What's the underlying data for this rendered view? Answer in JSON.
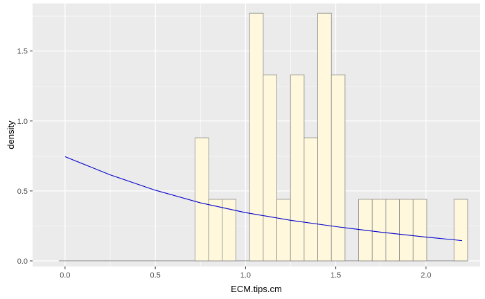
{
  "chart_data": {
    "type": "histogram",
    "title": "",
    "xlabel": "ECM.tips.cm",
    "ylabel": "density",
    "xlim": [
      -0.18,
      2.3
    ],
    "ylim": [
      -0.04,
      1.84
    ],
    "xticks": [
      0.0,
      0.5,
      1.0,
      1.5,
      2.0
    ],
    "xtick_labels": [
      "0.0",
      "0.5",
      "1.0",
      "1.5",
      "2.0"
    ],
    "yticks": [
      0.0,
      0.5,
      1.0,
      1.5
    ],
    "ytick_labels": [
      "0.0",
      "0.5",
      "1.0",
      "1.5"
    ],
    "grid": true,
    "background": "#ebebeb",
    "grid_color": "#ffffff",
    "bar_fill": "#fff8dc",
    "bar_stroke": "#8c8c8c",
    "baseline_color": "#8c8c8c",
    "curve_color": "#0000cc",
    "bin_width": 0.0755,
    "bins": [
      {
        "x0": -0.0344,
        "density": 0.0
      },
      {
        "x0": 0.0411,
        "density": 0.0
      },
      {
        "x0": 0.1166,
        "density": 0.0
      },
      {
        "x0": 0.1921,
        "density": 0.0
      },
      {
        "x0": 0.2676,
        "density": 0.0
      },
      {
        "x0": 0.3431,
        "density": 0.0
      },
      {
        "x0": 0.4186,
        "density": 0.0
      },
      {
        "x0": 0.4941,
        "density": 0.0
      },
      {
        "x0": 0.5696,
        "density": 0.0
      },
      {
        "x0": 0.6451,
        "density": 0.0
      },
      {
        "x0": 0.7206,
        "density": 0.88
      },
      {
        "x0": 0.7961,
        "density": 0.44
      },
      {
        "x0": 0.8716,
        "density": 0.44
      },
      {
        "x0": 0.9471,
        "density": 0.0
      },
      {
        "x0": 1.0226,
        "density": 1.77
      },
      {
        "x0": 1.0981,
        "density": 1.33
      },
      {
        "x0": 1.1736,
        "density": 0.44
      },
      {
        "x0": 1.2491,
        "density": 1.33
      },
      {
        "x0": 1.3246,
        "density": 0.88
      },
      {
        "x0": 1.4001,
        "density": 1.77
      },
      {
        "x0": 1.4756,
        "density": 1.33
      },
      {
        "x0": 1.5511,
        "density": 0.0
      },
      {
        "x0": 1.6266,
        "density": 0.44
      },
      {
        "x0": 1.7021,
        "density": 0.44
      },
      {
        "x0": 1.7776,
        "density": 0.44
      },
      {
        "x0": 1.8531,
        "density": 0.44
      },
      {
        "x0": 1.9286,
        "density": 0.44
      },
      {
        "x0": 2.0041,
        "density": 0.0
      },
      {
        "x0": 2.0796,
        "density": 0.0
      },
      {
        "x0": 2.1551,
        "density": 0.44
      }
    ],
    "curve": {
      "x": [
        0.0,
        0.25,
        0.5,
        0.75,
        1.0,
        1.25,
        1.5,
        1.75,
        2.0,
        2.2
      ],
      "y": [
        0.745,
        0.615,
        0.505,
        0.415,
        0.345,
        0.29,
        0.245,
        0.205,
        0.17,
        0.145
      ]
    }
  }
}
